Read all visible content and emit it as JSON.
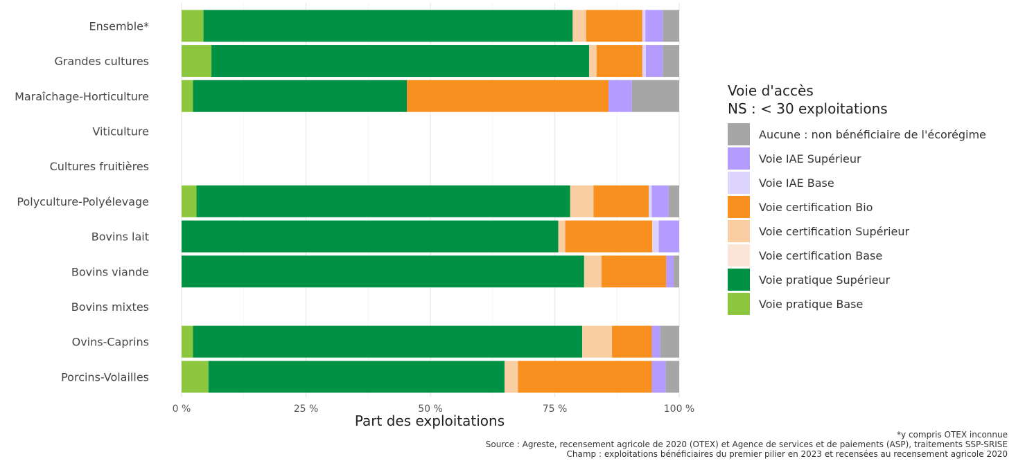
{
  "chart_data": {
    "type": "bar",
    "orientation": "horizontal",
    "stacked": true,
    "xlabel": "Part des exploitations",
    "xlim": [
      0,
      100
    ],
    "x_ticks": [
      "0 %",
      "25 %",
      "50 %",
      "75 %",
      "100 %"
    ],
    "grid": true,
    "categories": [
      "Ensemble*",
      "Grandes cultures",
      "Maraîchage-Horticulture",
      "Viticulture",
      "Cultures fruitières",
      "Polyculture-Polyélevage",
      "Bovins lait",
      "Bovins viande",
      "Bovins mixtes",
      "Ovins-Caprins",
      "Porcins-Volailles"
    ],
    "series": [
      {
        "name": "Voie pratique Base",
        "color": "#8dc63f",
        "values": [
          4.4,
          6.0,
          2.3,
          null,
          null,
          3.0,
          0.0,
          0.0,
          null,
          2.3,
          5.4
        ]
      },
      {
        "name": "Voie pratique Supérieur",
        "color": "#009144",
        "values": [
          74.2,
          75.9,
          43.0,
          null,
          null,
          75.1,
          75.7,
          80.9,
          null,
          78.2,
          59.5
        ]
      },
      {
        "name": "Voie certification Base",
        "color": "#fbe5d6",
        "values": [
          0.0,
          0.0,
          0.0,
          null,
          null,
          0.0,
          0.0,
          0.0,
          null,
          0.0,
          0.0
        ]
      },
      {
        "name": "Voie certification Supérieur",
        "color": "#f9cea2",
        "values": [
          2.7,
          1.5,
          0.0,
          null,
          null,
          4.7,
          1.4,
          3.5,
          null,
          6.0,
          2.7
        ]
      },
      {
        "name": "Voie certification Bio",
        "color": "#f7901e",
        "values": [
          11.3,
          9.2,
          40.5,
          null,
          null,
          11.1,
          17.5,
          13.0,
          null,
          8.0,
          26.9
        ]
      },
      {
        "name": "Voie IAE Base",
        "color": "#dcd4fc",
        "values": [
          0.6,
          0.7,
          0.0,
          null,
          null,
          0.6,
          1.3,
          0.0,
          null,
          0.0,
          0.0
        ]
      },
      {
        "name": "Voie IAE Supérieur",
        "color": "#b39cfd",
        "values": [
          3.5,
          3.4,
          4.7,
          null,
          null,
          3.4,
          4.1,
          1.5,
          null,
          1.7,
          2.8
        ]
      },
      {
        "name": "Aucune : non bénéficiaire de l'écorégime",
        "color": "#a6a6a6",
        "values": [
          3.3,
          3.3,
          9.5,
          null,
          null,
          2.1,
          0.0,
          1.1,
          null,
          3.8,
          2.7
        ]
      }
    ],
    "legend": {
      "title_lines": [
        "Voie d'accès",
        "NS : < 30 exploitations"
      ],
      "placement": "right",
      "order": [
        "Aucune : non bénéficiaire de l'écorégime",
        "Voie IAE Supérieur",
        "Voie IAE Base",
        "Voie certification Bio",
        "Voie certification Supérieur",
        "Voie certification Base",
        "Voie pratique Supérieur",
        "Voie pratique Base"
      ]
    },
    "notes": [
      "*y compris OTEX inconnue",
      "Source : Agreste, recensement agricole de 2020 (OTEX) et Agence de services et de paiements (ASP), traitements SSP-SRISE",
      "Champ : exploitations bénéficiaires du premier pilier en 2023 et recensées au recensement agricole 2020"
    ]
  }
}
